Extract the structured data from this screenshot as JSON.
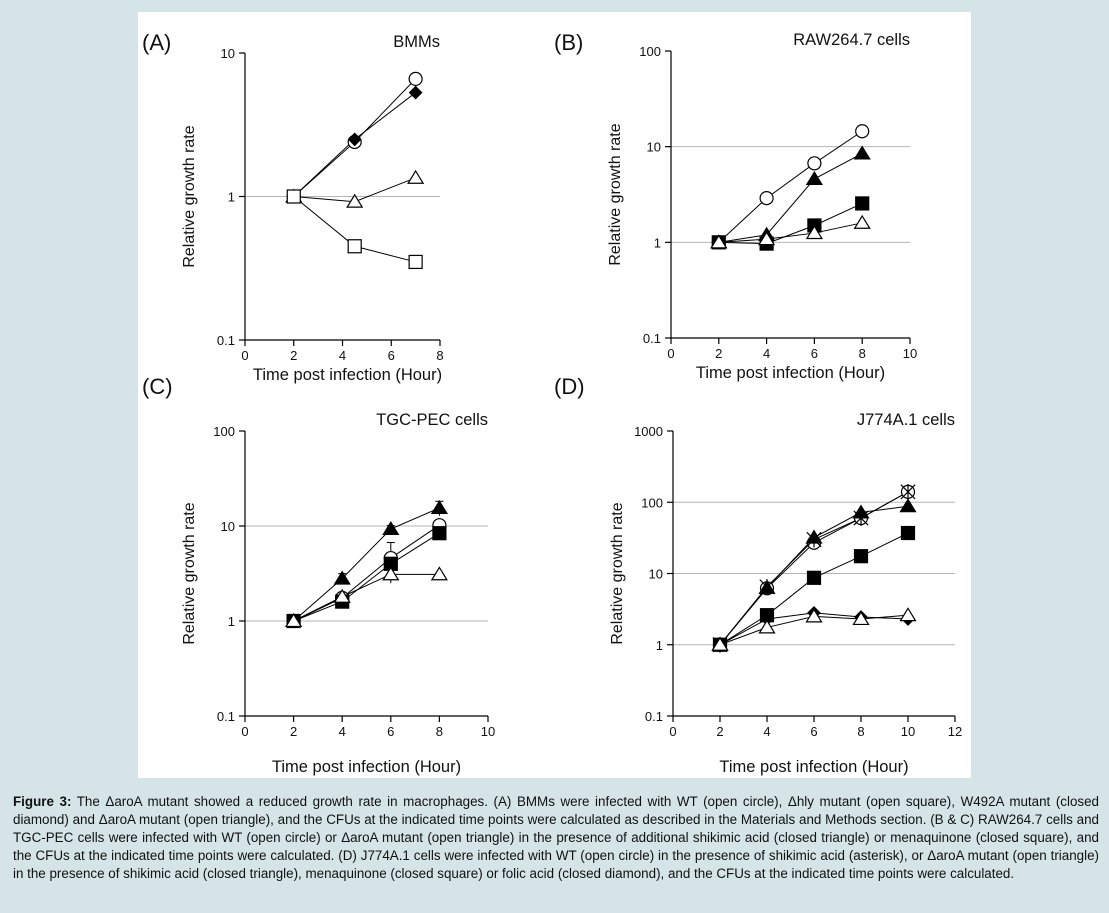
{
  "caption": {
    "label": "Figure 3:",
    "text": " The ΔaroA mutant showed a reduced growth rate in macrophages. (A) BMMs were infected with WT (open circle), Δhly mutant (open square), W492A mutant (closed diamond) and ΔaroA mutant (open triangle), and the CFUs at the indicated time points were calculated as described in the Materials and Methods section. (B & C) RAW264.7 cells and TGC-PEC cells were infected with WT (open circle) or ΔaroA mutant (open triangle) in the presence of additional shikimic acid (closed triangle) or menaquinone (closed square), and the CFUs at the indicated time points were calculated. (D) J774A.1 cells were infected with WT (open circle) in the presence of shikimic acid (asterisk), or ΔaroA mutant (open triangle) in the presence of shikimic acid (closed triangle), menaquinone (closed square) or folic acid (closed diamond), and the CFUs at the indicated time points were calculated."
  },
  "chart_data": [
    {
      "panel": "(A)",
      "type": "line",
      "title": "BMMs",
      "xlabel": "Time post infection (Hour)",
      "ylabel": "Relative growth rate",
      "yscale": "log",
      "xlim": [
        0,
        8
      ],
      "ylim": [
        0.1,
        10
      ],
      "xticks": [
        "0",
        "2",
        "4",
        "6",
        "8"
      ],
      "yticks": [
        "0.1",
        "1",
        "10"
      ],
      "grid": [
        1
      ],
      "series": [
        {
          "marker": "open-circle",
          "x": [
            2,
            4.5,
            7
          ],
          "y": [
            1,
            2.4,
            6.6
          ]
        },
        {
          "marker": "closed-diamond",
          "x": [
            2,
            4.5,
            7
          ],
          "y": [
            1,
            2.5,
            5.3
          ]
        },
        {
          "marker": "open-triangle",
          "x": [
            2,
            4.5,
            7
          ],
          "y": [
            1,
            0.92,
            1.35
          ]
        },
        {
          "marker": "open-square",
          "x": [
            2,
            4.5,
            7
          ],
          "y": [
            1,
            0.45,
            0.35
          ]
        }
      ]
    },
    {
      "panel": "(B)",
      "type": "line",
      "title": "RAW264.7 cells",
      "xlabel": "Time post infection (Hour)",
      "ylabel": "Relative growth rate",
      "yscale": "log",
      "xlim": [
        0,
        10
      ],
      "ylim": [
        0.1,
        100
      ],
      "xticks": [
        "0",
        "2",
        "4",
        "6",
        "8",
        "10"
      ],
      "yticks": [
        "0.1",
        "1",
        "10",
        "100"
      ],
      "grid": [
        1,
        10
      ],
      "series": [
        {
          "marker": "open-circle",
          "x": [
            2,
            4,
            6,
            8
          ],
          "y": [
            1,
            2.9,
            6.7,
            14.5
          ]
        },
        {
          "marker": "closed-triangle",
          "x": [
            2,
            4,
            6,
            8
          ],
          "y": [
            1,
            1.2,
            4.6,
            8.5
          ]
        },
        {
          "marker": "closed-square",
          "x": [
            2,
            4,
            6,
            8
          ],
          "y": [
            1,
            0.97,
            1.5,
            2.55
          ]
        },
        {
          "marker": "open-triangle",
          "x": [
            2,
            4,
            6,
            8
          ],
          "y": [
            1,
            1.08,
            1.25,
            1.6
          ]
        }
      ]
    },
    {
      "panel": "(C)",
      "type": "line",
      "title": "TGC-PEC cells",
      "xlabel": "Time post infection (Hour)",
      "ylabel": "Relative growth rate",
      "yscale": "log",
      "xlim": [
        0,
        10
      ],
      "ylim": [
        0.1,
        100
      ],
      "xticks": [
        "0",
        "2",
        "4",
        "6",
        "8",
        "10"
      ],
      "yticks": [
        "0.1",
        "1",
        "10",
        "100"
      ],
      "grid": [
        1,
        10
      ],
      "series": [
        {
          "marker": "closed-triangle",
          "x": [
            2,
            4,
            6,
            8
          ],
          "y": [
            1,
            2.8,
            9.3,
            15.5
          ],
          "err": [
            0,
            0.35,
            0.8,
            2.7
          ]
        },
        {
          "marker": "open-circle",
          "x": [
            2,
            4,
            6,
            8
          ],
          "y": [
            1,
            1.75,
            4.6,
            10.2
          ],
          "err": [
            0,
            0.15,
            2.1,
            0.8
          ]
        },
        {
          "marker": "closed-square",
          "x": [
            2,
            4,
            6,
            8
          ],
          "y": [
            1,
            1.6,
            4,
            8.4
          ]
        },
        {
          "marker": "open-triangle",
          "x": [
            2,
            4,
            6,
            8
          ],
          "y": [
            1,
            1.8,
            3.1,
            3.1
          ]
        }
      ]
    },
    {
      "panel": "(D)",
      "type": "line",
      "title": "J774A.1 cells",
      "xlabel": "Time post infection (Hour)",
      "ylabel": "Relative growth rate",
      "yscale": "log",
      "xlim": [
        0,
        12
      ],
      "ylim": [
        0.1,
        1000
      ],
      "xticks": [
        "0",
        "2",
        "4",
        "6",
        "8",
        "10",
        "12"
      ],
      "yticks": [
        "0.1",
        "1",
        "10",
        "100",
        "1000"
      ],
      "grid": [
        1,
        10,
        100
      ],
      "series": [
        {
          "marker": "open-circle",
          "x": [
            2,
            4,
            6,
            8,
            10
          ],
          "y": [
            1,
            6.2,
            27,
            60,
            140
          ]
        },
        {
          "marker": "asterisk",
          "x": [
            2,
            4,
            6,
            8,
            10
          ],
          "y": [
            1,
            6.5,
            30,
            60,
            140
          ]
        },
        {
          "marker": "closed-triangle",
          "x": [
            2,
            4,
            6,
            8,
            10
          ],
          "y": [
            1,
            6.3,
            32,
            72,
            88
          ]
        },
        {
          "marker": "closed-square",
          "x": [
            2,
            4,
            6,
            8,
            10
          ],
          "y": [
            1,
            2.6,
            8.7,
            17.5,
            37
          ]
        },
        {
          "marker": "closed-diamond",
          "x": [
            2,
            4,
            6,
            8,
            10
          ],
          "y": [
            1,
            2.3,
            2.8,
            2.45,
            2.3
          ]
        },
        {
          "marker": "open-triangle",
          "x": [
            2,
            4,
            6,
            8,
            10
          ],
          "y": [
            1,
            1.75,
            2.5,
            2.3,
            2.6
          ]
        }
      ]
    }
  ]
}
